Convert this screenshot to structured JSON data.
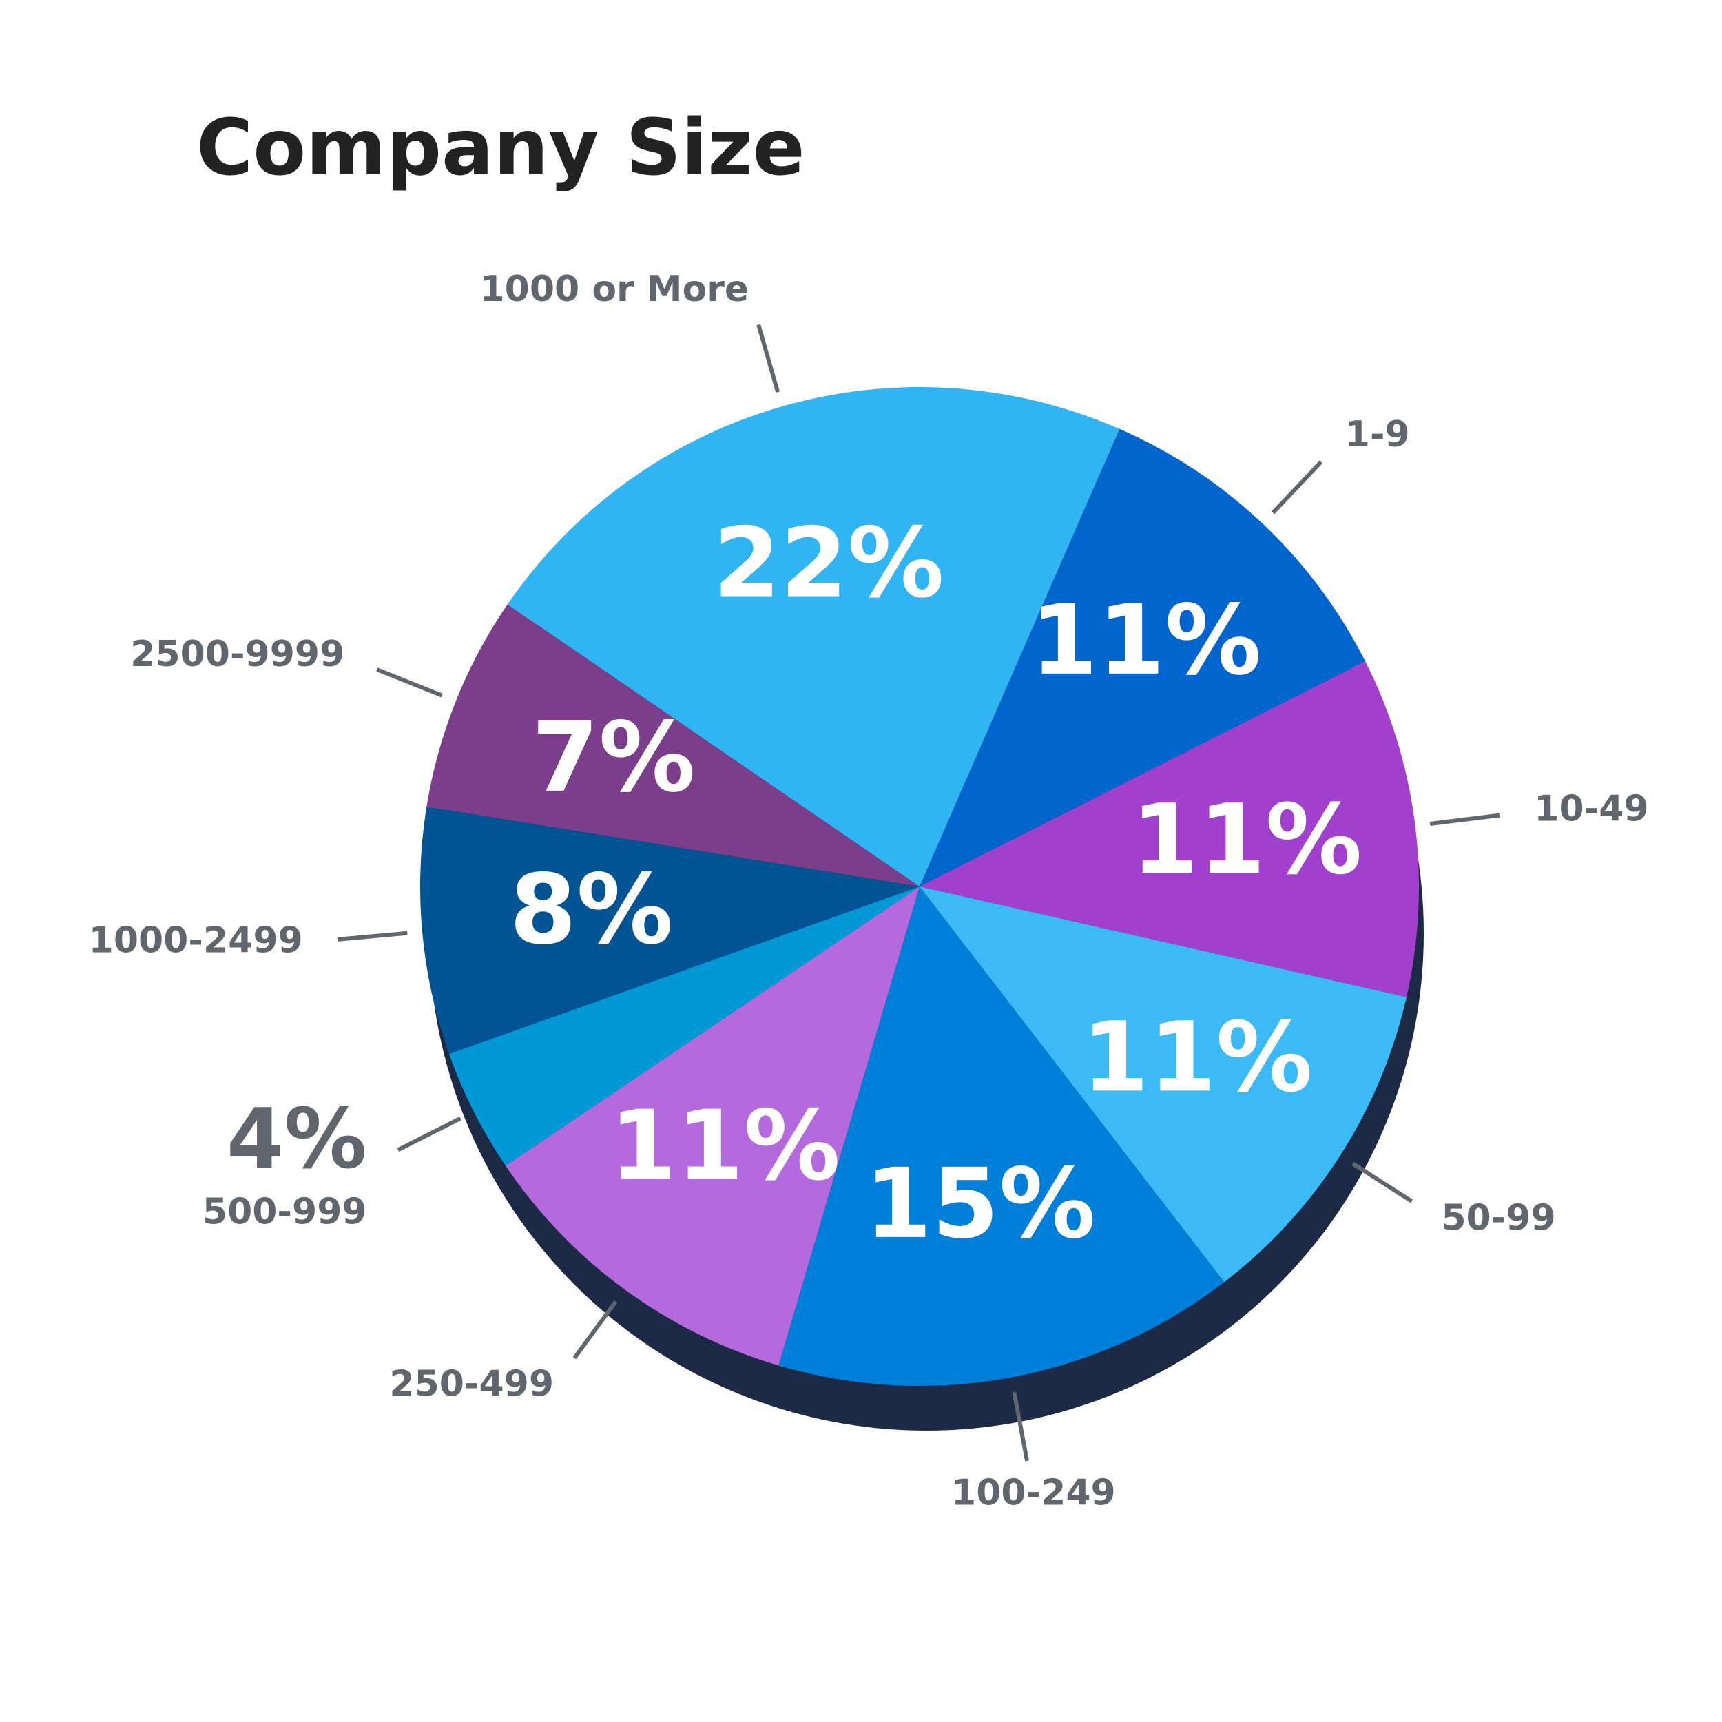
{
  "chart_data": {
    "type": "pie",
    "title": "Company Size",
    "categories": [
      "1-9",
      "10-49",
      "50-99",
      "100-249",
      "250-499",
      "500-999",
      "1000-2499",
      "2500-9999",
      "1000 or More"
    ],
    "values": [
      11,
      11,
      11,
      15,
      11,
      4,
      8,
      7,
      22
    ],
    "value_labels": [
      "11%",
      "11%",
      "11%",
      "15%",
      "11%",
      "4%",
      "8%",
      "7%",
      "22%"
    ],
    "colors": [
      "#0064cd",
      "#a040cc",
      "#3cbaf5",
      "#007fd9",
      "#b469dc",
      "#0099d6",
      "#005494",
      "#7a3e8a",
      "#30b4f2"
    ]
  }
}
